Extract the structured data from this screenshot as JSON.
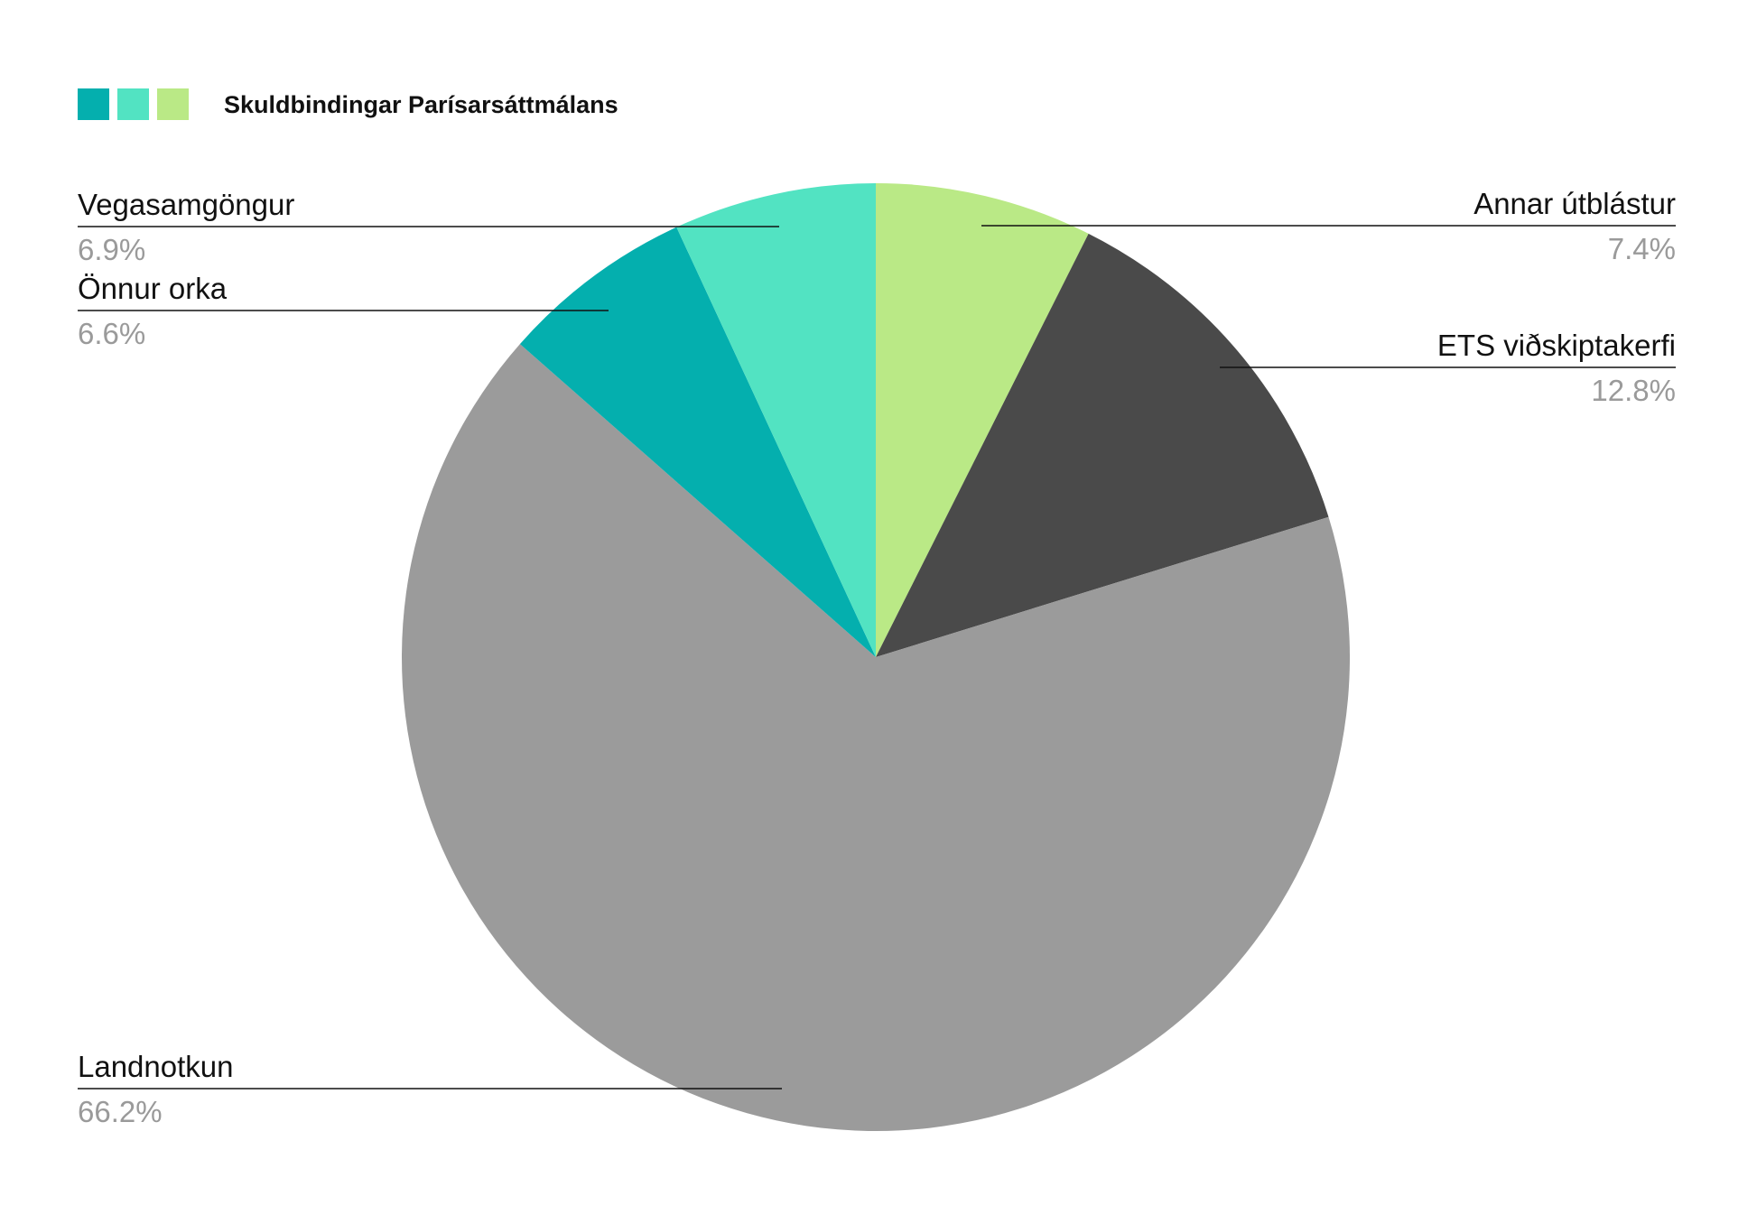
{
  "legend": {
    "title": "Skuldbindingar Parísarsáttmálans",
    "swatch_colors": [
      "#04AFAE",
      "#52E3C2",
      "#BAE986"
    ]
  },
  "chart_data": {
    "type": "pie",
    "title": "Skuldbindingar Parísarsáttmálans",
    "start": "12 o'clock",
    "direction": "clockwise",
    "slices": [
      {
        "label": "Annar útblástur",
        "value": 7.4,
        "display": "7.4%",
        "color": "#BAE986",
        "label_side": "right"
      },
      {
        "label": "ETS viðskiptakerfi",
        "value": 12.8,
        "display": "12.8%",
        "color": "#4A4A4A",
        "label_side": "right"
      },
      {
        "label": "Landnotkun",
        "value": 66.2,
        "display": "66.2%",
        "color": "#9B9B9B",
        "label_side": "left"
      },
      {
        "label": "Önnur orka",
        "value": 6.6,
        "display": "6.6%",
        "color": "#04AFAE",
        "label_side": "left"
      },
      {
        "label": "Vegasamgöngur",
        "value": 6.9,
        "display": "6.9%",
        "color": "#52E3C2",
        "label_side": "left"
      }
    ]
  }
}
